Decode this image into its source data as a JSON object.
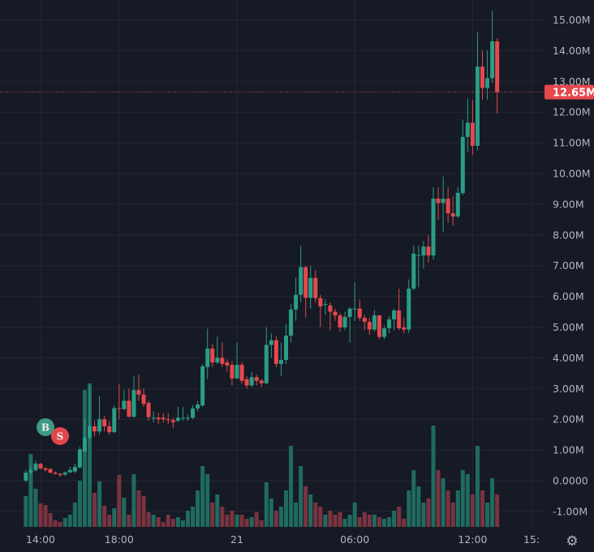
{
  "chart_data": {
    "type": "candlestick",
    "title": "",
    "interval_minutes": 15,
    "price_axis": {
      "ticks": [
        15,
        14,
        13,
        12,
        11,
        10,
        9,
        8,
        7,
        6,
        5,
        4,
        3,
        2,
        1,
        0,
        -1
      ],
      "tick_labels": [
        "15.00M",
        "14.00M",
        "13.00M",
        "12.00M",
        "11.00M",
        "10.00M",
        "9.00M",
        "8.00M",
        "7.00M",
        "6.00M",
        "5.00M",
        "4.00M",
        "3.00M",
        "2.00M",
        "1.00M",
        "0.0000",
        "-1.00M"
      ],
      "unit": "M"
    },
    "time_axis": {
      "tick_labels": [
        "14:00",
        "18:00",
        "21",
        "06:00",
        "12:00",
        "15:"
      ],
      "tick_hours_from_start": [
        0,
        4,
        10,
        16,
        22,
        25
      ]
    },
    "first_candle_hours_from_start": -0.75,
    "current_price": 12.65,
    "current_price_label": "12.65M",
    "markers": [
      {
        "label": "B",
        "type": "buy",
        "candle_index": 4
      },
      {
        "label": "S",
        "type": "sell",
        "candle_index": 7
      }
    ],
    "candles_ohlc": [
      [
        0,
        0.35,
        -0.05,
        0.26
      ],
      [
        0.26,
        0.45,
        0.2,
        0.34
      ],
      [
        0.34,
        0.65,
        0.3,
        0.55
      ],
      [
        0.55,
        0.58,
        0.38,
        0.4
      ],
      [
        0.4,
        0.45,
        0.3,
        0.35
      ],
      [
        0.38,
        0.4,
        0.24,
        0.26
      ],
      [
        0.26,
        0.3,
        0.2,
        0.22
      ],
      [
        0.22,
        0.25,
        0.12,
        0.18
      ],
      [
        0.2,
        0.3,
        0.15,
        0.27
      ],
      [
        0.27,
        0.45,
        0.25,
        0.35
      ],
      [
        0.3,
        0.55,
        0.25,
        0.45
      ],
      [
        0.43,
        1.1,
        0.4,
        1.02
      ],
      [
        0.95,
        2.0,
        0.9,
        1.4
      ],
      [
        1.4,
        3.1,
        1.3,
        1.77
      ],
      [
        1.77,
        1.95,
        1.45,
        1.6
      ],
      [
        1.6,
        2.75,
        1.5,
        2.0
      ],
      [
        2.0,
        2.1,
        1.6,
        1.77
      ],
      [
        1.77,
        1.95,
        1.5,
        1.58
      ],
      [
        1.58,
        2.45,
        1.55,
        2.36
      ],
      [
        2.36,
        3.15,
        2.0,
        2.35
      ],
      [
        2.33,
        2.95,
        2.3,
        2.6
      ],
      [
        2.6,
        3.0,
        2.05,
        2.08
      ],
      [
        2.08,
        3.4,
        2.05,
        2.95
      ],
      [
        2.95,
        3.45,
        2.6,
        2.8
      ],
      [
        2.8,
        3.0,
        2.4,
        2.5
      ],
      [
        2.53,
        2.6,
        1.95,
        2.07
      ],
      [
        2.05,
        2.25,
        1.9,
        2.05
      ],
      [
        2.05,
        2.2,
        1.85,
        2.0
      ],
      [
        2.05,
        2.2,
        1.9,
        2.0
      ],
      [
        2.0,
        2.2,
        1.85,
        1.97
      ],
      [
        1.97,
        2.05,
        1.7,
        1.9
      ],
      [
        1.95,
        2.4,
        1.9,
        2.05
      ],
      [
        2.05,
        2.4,
        1.95,
        2.05
      ],
      [
        2.05,
        2.15,
        1.95,
        2.05
      ],
      [
        2.05,
        2.45,
        2.0,
        2.35
      ],
      [
        2.35,
        2.6,
        2.25,
        2.48
      ],
      [
        2.45,
        3.8,
        2.4,
        3.72
      ],
      [
        3.7,
        4.95,
        3.3,
        4.3
      ],
      [
        4.3,
        4.45,
        3.7,
        3.85
      ],
      [
        3.85,
        4.7,
        3.8,
        4.0
      ],
      [
        4.0,
        4.5,
        3.7,
        3.8
      ],
      [
        3.85,
        3.95,
        3.55,
        3.75
      ],
      [
        3.77,
        3.9,
        3.1,
        3.33
      ],
      [
        3.33,
        4.5,
        3.3,
        3.77
      ],
      [
        3.77,
        3.85,
        3.15,
        3.25
      ],
      [
        3.3,
        3.4,
        3.0,
        3.1
      ],
      [
        3.1,
        3.55,
        3.05,
        3.37
      ],
      [
        3.37,
        3.45,
        3.1,
        3.25
      ],
      [
        3.26,
        3.3,
        3.05,
        3.17
      ],
      [
        3.17,
        5.0,
        3.15,
        4.42
      ],
      [
        4.42,
        4.8,
        4.0,
        4.57
      ],
      [
        4.57,
        4.7,
        3.7,
        3.8
      ],
      [
        3.8,
        4.5,
        3.4,
        3.93
      ],
      [
        3.93,
        5.1,
        3.8,
        4.72
      ],
      [
        4.72,
        5.75,
        4.5,
        5.57
      ],
      [
        5.57,
        6.6,
        5.2,
        6.05
      ],
      [
        6.05,
        7.65,
        5.8,
        6.95
      ],
      [
        6.95,
        7.0,
        5.3,
        5.95
      ],
      [
        5.95,
        7.0,
        5.6,
        6.6
      ],
      [
        6.6,
        6.85,
        5.8,
        5.94
      ],
      [
        5.94,
        6.05,
        5.0,
        5.67
      ],
      [
        5.75,
        5.9,
        5.4,
        5.75
      ],
      [
        5.7,
        5.8,
        4.9,
        5.5
      ],
      [
        5.5,
        5.6,
        5.2,
        5.38
      ],
      [
        5.38,
        5.45,
        4.85,
        4.99
      ],
      [
        4.99,
        5.5,
        4.9,
        5.33
      ],
      [
        5.33,
        5.65,
        4.5,
        5.6
      ],
      [
        5.6,
        6.45,
        5.2,
        5.6
      ],
      [
        5.6,
        5.9,
        5.2,
        5.3
      ],
      [
        5.3,
        5.4,
        4.9,
        5.17
      ],
      [
        5.17,
        5.3,
        4.75,
        4.92
      ],
      [
        4.92,
        5.55,
        4.85,
        5.38
      ],
      [
        5.38,
        5.4,
        4.6,
        4.68
      ],
      [
        4.68,
        5.05,
        4.6,
        4.96
      ],
      [
        4.96,
        5.35,
        4.8,
        5.25
      ],
      [
        5.25,
        5.6,
        4.9,
        5.54
      ],
      [
        5.54,
        6.25,
        4.9,
        4.96
      ],
      [
        4.99,
        5.3,
        4.8,
        4.92
      ],
      [
        4.92,
        6.55,
        4.8,
        6.25
      ],
      [
        6.25,
        7.65,
        6.2,
        7.39
      ],
      [
        7.35,
        7.65,
        6.3,
        7.35
      ],
      [
        7.33,
        7.8,
        6.9,
        7.62
      ],
      [
        7.62,
        8.0,
        7.1,
        7.33
      ],
      [
        7.33,
        9.55,
        7.2,
        9.18
      ],
      [
        9.18,
        9.55,
        8.5,
        9.04
      ],
      [
        9.04,
        9.9,
        8.1,
        9.18
      ],
      [
        9.18,
        9.55,
        8.4,
        8.7
      ],
      [
        8.7,
        9.25,
        8.3,
        8.6
      ],
      [
        8.6,
        9.55,
        8.55,
        9.37
      ],
      [
        9.36,
        11.75,
        9.3,
        11.19
      ],
      [
        11.19,
        12.45,
        10.7,
        11.65
      ],
      [
        11.65,
        12.4,
        10.6,
        10.9
      ],
      [
        10.9,
        14.6,
        10.75,
        13.48
      ],
      [
        13.48,
        14.0,
        12.4,
        12.78
      ],
      [
        12.78,
        14.0,
        12.4,
        13.1
      ],
      [
        13.1,
        15.3,
        12.95,
        14.3
      ],
      [
        14.3,
        14.4,
        11.95,
        12.65
      ]
    ],
    "volumes_relative": [
      38,
      90,
      47,
      29,
      27,
      17,
      8,
      6,
      11,
      15,
      30,
      57,
      169,
      177,
      42,
      56,
      26,
      15,
      23,
      64,
      36,
      15,
      65,
      45,
      38,
      18,
      15,
      12,
      6,
      15,
      10,
      12,
      8,
      20,
      25,
      45,
      75,
      65,
      30,
      40,
      25,
      15,
      20,
      15,
      15,
      10,
      12,
      18,
      8,
      55,
      35,
      20,
      25,
      45,
      100,
      30,
      75,
      50,
      40,
      30,
      25,
      15,
      20,
      15,
      18,
      10,
      15,
      30,
      12,
      18,
      15,
      15,
      12,
      10,
      12,
      20,
      25,
      10,
      45,
      70,
      50,
      30,
      35,
      125,
      70,
      60,
      45,
      30,
      45,
      70,
      65,
      40,
      100,
      45,
      30,
      60,
      40
    ],
    "colors": {
      "background": "#161a25",
      "grid": "#242733",
      "up": "#2a9d86",
      "down": "#e5484d",
      "up_volume": "#1f6b5f",
      "down_volume": "#7a3340",
      "axis_text": "#b2b5be"
    }
  },
  "settings_icon": "gear-icon"
}
